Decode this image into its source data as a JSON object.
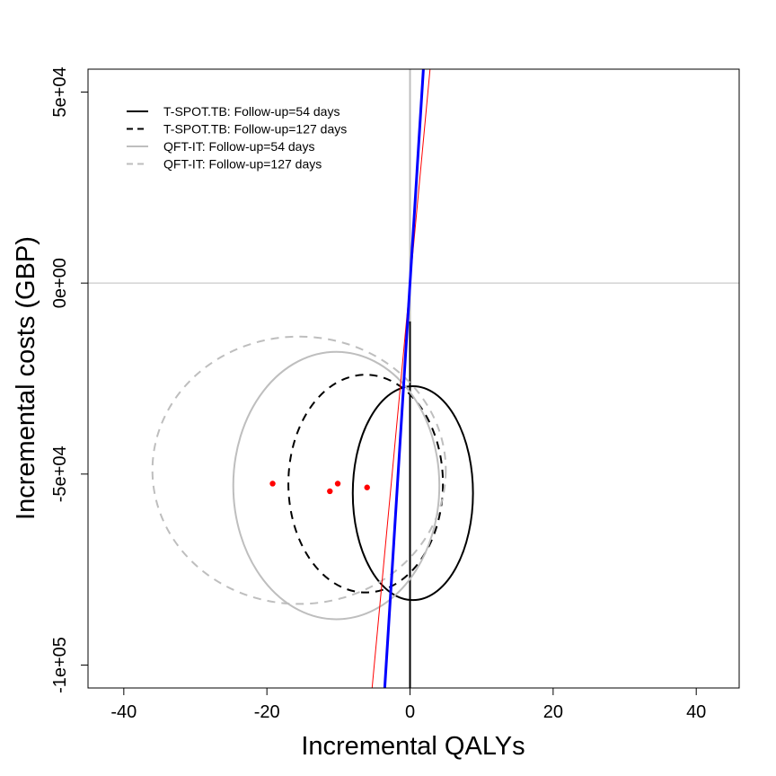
{
  "chart_data": {
    "type": "scatter",
    "xlabel": "Incremental QALYs",
    "ylabel": "Incremental costs (GBP)",
    "xlim": [
      -45,
      46
    ],
    "ylim": [
      -106000,
      56000
    ],
    "x_ticks": [
      -40,
      -20,
      0,
      20,
      40
    ],
    "x_tick_labels": [
      "-40",
      "-20",
      "0",
      "20",
      "40"
    ],
    "y_ticks": [
      50000,
      0,
      -50000,
      -100000
    ],
    "y_tick_labels": [
      "5e+04",
      "0e+00",
      "-5e+04",
      "-1e+05"
    ],
    "legend": {
      "position": "top-left",
      "entries": [
        {
          "label": "T-SPOT.TB: Follow-up=54 days",
          "color": "#000000",
          "dash": "solid"
        },
        {
          "label": "T-SPOT.TB: Follow-up=127 days",
          "color": "#000000",
          "dash": "dashed"
        },
        {
          "label": "QFT-IT: Follow-up=54 days",
          "color": "#bebebe",
          "dash": "solid"
        },
        {
          "label": "QFT-IT: Follow-up=127 days",
          "color": "#bebebe",
          "dash": "dashed"
        }
      ]
    },
    "points": [
      {
        "x": -19.2,
        "y": -52500
      },
      {
        "x": -11.2,
        "y": -54500
      },
      {
        "x": -10.1,
        "y": -52500
      },
      {
        "x": -6.0,
        "y": -53500
      }
    ],
    "point_color": "#ff0000",
    "ellipses": [
      {
        "series": "T-SPOT.TB: Follow-up=54 days",
        "cx": 0.4,
        "cy": -55000,
        "rx": 8.4,
        "ry": 28000,
        "color": "#000000",
        "dash": "solid"
      },
      {
        "series": "T-SPOT.TB: Follow-up=127 days",
        "cx": -6.2,
        "cy": -52500,
        "rx": 10.8,
        "ry": 28500,
        "color": "#000000",
        "dash": "dashed"
      },
      {
        "series": "QFT-IT: Follow-up=54 days",
        "cx": -10.3,
        "cy": -53000,
        "rx": 14.4,
        "ry": 35000,
        "color": "#bebebe",
        "dash": "solid"
      },
      {
        "series": "QFT-IT: Follow-up=127 days",
        "cx": -15.5,
        "cy": -49000,
        "rx": 20.5,
        "ry": 35000,
        "color": "#bebebe",
        "dash": "dashed"
      }
    ],
    "reference_lines": [
      {
        "type": "horizontal",
        "y": 0,
        "color": "#bebebe"
      },
      {
        "type": "vertical",
        "x": 0,
        "y_from": -106000,
        "y_to": -10000,
        "color": "#000000"
      },
      {
        "type": "vertical",
        "x": 0,
        "y_from": -10000,
        "y_to": 56000,
        "color": "#bebebe"
      }
    ],
    "threshold_lines": [
      {
        "slope": 20000,
        "color": "#ff0000",
        "width": 1
      },
      {
        "slope": 30000,
        "color": "#0000ff",
        "width": 3
      }
    ],
    "grid": false
  }
}
